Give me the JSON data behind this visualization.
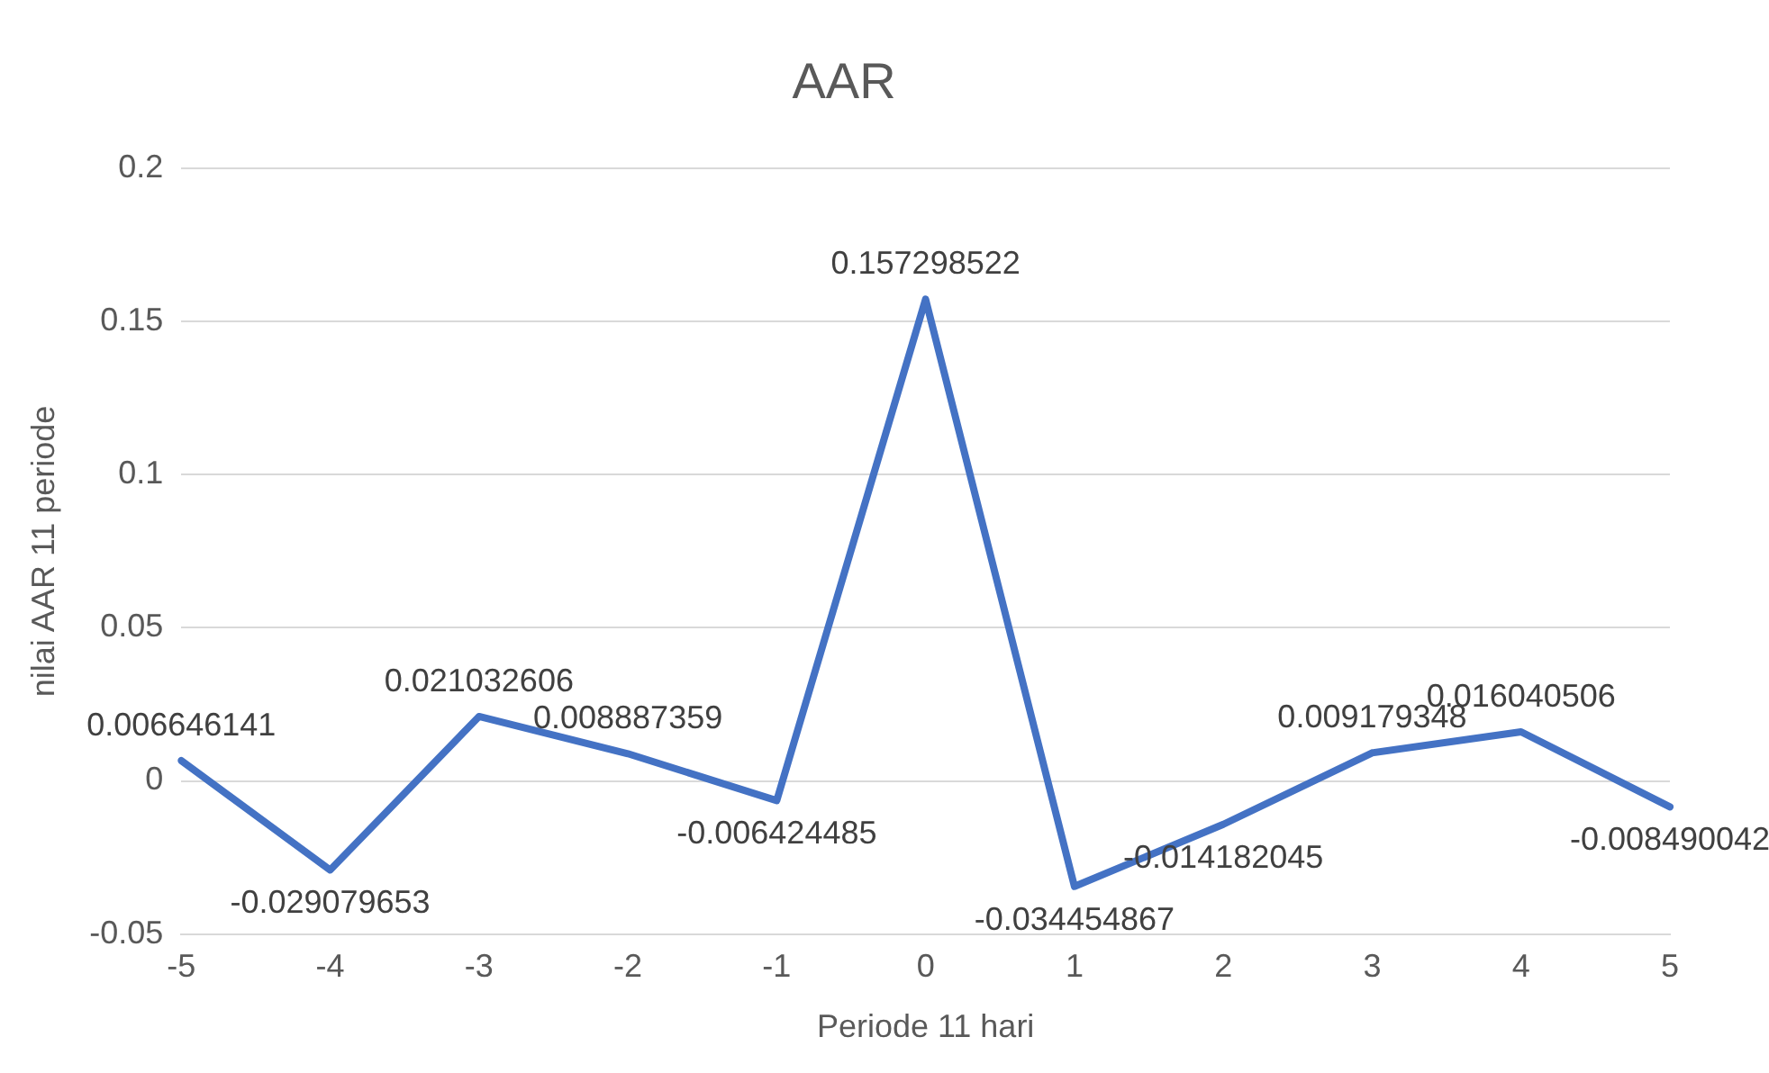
{
  "chart_data": {
    "type": "line",
    "title": "AAR",
    "xlabel": "Periode 11 hari",
    "ylabel": "nilai AAR 11 periode",
    "categories": [
      "-5",
      "-4",
      "-3",
      "-2",
      "-1",
      "0",
      "1",
      "2",
      "3",
      "4",
      "5"
    ],
    "series": [
      {
        "color": "#4472c4",
        "values": [
          0.006646141,
          -0.029079653,
          0.021032606,
          0.008887359,
          -0.006424485,
          0.157298522,
          -0.034454867,
          -0.014182045,
          0.009179348,
          0.016040506,
          -0.008490042
        ]
      }
    ],
    "ylim": [
      -0.05,
      0.2
    ],
    "yticks": [
      -0.05,
      0,
      0.05,
      0.1,
      0.15,
      0.2
    ],
    "grid": "y",
    "legend": false,
    "marker": "none",
    "line_style": "solid",
    "data_labels": true
  }
}
